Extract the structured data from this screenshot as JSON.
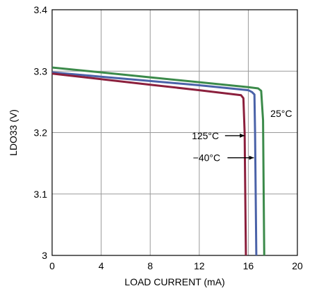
{
  "chart_data": {
    "type": "line",
    "xlabel": "LOAD CURRENT (mA)",
    "ylabel": "LDO33 (V)",
    "xlim": [
      0,
      20
    ],
    "ylim": [
      3.0,
      3.4
    ],
    "xticks": [
      0,
      4,
      8,
      12,
      16,
      20
    ],
    "yticks": [
      3.0,
      3.1,
      3.2,
      3.3,
      3.4
    ],
    "xtick_labels": [
      "0",
      "4",
      "8",
      "12",
      "16",
      "20"
    ],
    "ytick_labels": [
      "3",
      "3.1",
      "3.2",
      "3.3",
      "3.4"
    ],
    "grid": true,
    "series": [
      {
        "name": "25°C",
        "color": "#3b8a4a",
        "x": [
          0,
          4,
          8,
          12,
          16,
          16.8,
          17.05,
          17.2,
          17.25,
          17.3
        ],
        "y": [
          3.306,
          3.298,
          3.29,
          3.282,
          3.274,
          3.272,
          3.268,
          3.22,
          3.1,
          3.0
        ]
      },
      {
        "name": "−40°C",
        "color": "#4a62a8",
        "x": [
          0,
          4,
          8,
          12,
          16,
          16.3,
          16.5,
          16.55,
          16.6,
          16.65
        ],
        "y": [
          3.298,
          3.291,
          3.284,
          3.277,
          3.269,
          3.266,
          3.262,
          3.2,
          3.1,
          3.0
        ]
      },
      {
        "name": "125°C",
        "color": "#8b1f3c",
        "x": [
          0,
          4,
          8,
          12,
          15.4,
          15.6,
          15.7,
          15.75,
          15.8
        ],
        "y": [
          3.296,
          3.287,
          3.278,
          3.269,
          3.261,
          3.256,
          3.2,
          3.1,
          3.0
        ]
      }
    ],
    "annotations": [
      {
        "text": "25°C",
        "x": 17.8,
        "y": 3.231
      },
      {
        "text": "125°C",
        "arrow_from": [
          14.1,
          3.195
        ],
        "arrow_to": [
          15.7,
          3.195
        ],
        "label_x": 12.5,
        "label_y": 3.195
      },
      {
        "text": "−40°C",
        "arrow_from": [
          14.3,
          3.159
        ],
        "arrow_to": [
          16.45,
          3.159
        ],
        "label_x": 12.6,
        "label_y": 3.159
      }
    ]
  }
}
